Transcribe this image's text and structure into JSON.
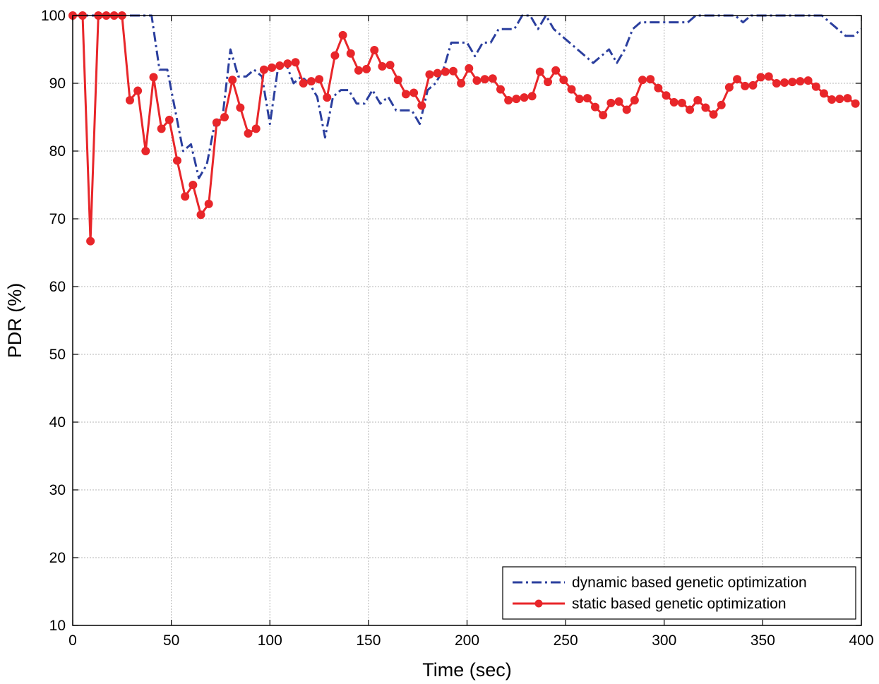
{
  "chart_data": {
    "type": "line",
    "title": "",
    "xlabel": "Time (sec)",
    "ylabel": "PDR (%)",
    "xlim": [
      0,
      400
    ],
    "ylim": [
      10,
      100
    ],
    "xticks": [
      0,
      50,
      100,
      150,
      200,
      250,
      300,
      350,
      400
    ],
    "yticks": [
      10,
      20,
      30,
      40,
      50,
      60,
      70,
      80,
      90,
      100
    ],
    "grid": true,
    "legend_position": "bottom-right",
    "series": [
      {
        "name": "dynamic based genetic optimization",
        "color": "#2b3f9e",
        "line_style": "dash-dot",
        "marker": "none",
        "x": [
          0,
          4,
          8,
          12,
          16,
          20,
          24,
          28,
          32,
          36,
          40,
          44,
          48,
          52,
          56,
          60,
          64,
          68,
          72,
          76,
          80,
          84,
          88,
          92,
          96,
          100,
          104,
          108,
          112,
          116,
          120,
          124,
          128,
          132,
          136,
          140,
          144,
          148,
          152,
          156,
          160,
          164,
          168,
          172,
          176,
          180,
          184,
          188,
          192,
          196,
          200,
          204,
          208,
          212,
          216,
          220,
          224,
          228,
          232,
          236,
          240,
          244,
          248,
          252,
          256,
          260,
          264,
          268,
          272,
          276,
          280,
          284,
          288,
          292,
          296,
          300,
          304,
          308,
          312,
          316,
          320,
          324,
          328,
          332,
          336,
          340,
          344,
          348,
          352,
          356,
          360,
          364,
          368,
          372,
          376,
          380,
          384,
          388,
          392,
          396,
          400
        ],
        "y": [
          100,
          100,
          100,
          100,
          100,
          100,
          100,
          100,
          100,
          100,
          100,
          92,
          92,
          86,
          80,
          81,
          76,
          78,
          84,
          85,
          95,
          91,
          91,
          92,
          91,
          84,
          92,
          93,
          90,
          91,
          90,
          88,
          82,
          88,
          89,
          89,
          87,
          87,
          89,
          87,
          88,
          86,
          86,
          86,
          84,
          89,
          90,
          92,
          96,
          96,
          96,
          94,
          96,
          96,
          98,
          98,
          98,
          100,
          100,
          98,
          100,
          98,
          97,
          96,
          95,
          94,
          93,
          94,
          95,
          93,
          95,
          98,
          99,
          99,
          99,
          99,
          99,
          99,
          99,
          100,
          100,
          100,
          100,
          100,
          100,
          99,
          100,
          100,
          100,
          100,
          100,
          100,
          100,
          100,
          100,
          100,
          99,
          98,
          97,
          97,
          98
        ]
      },
      {
        "name": "static based genetic optimization",
        "color": "#e8262a",
        "line_style": "solid",
        "marker": "circle",
        "x": [
          0,
          5,
          9,
          13,
          17,
          21,
          25,
          29,
          33,
          37,
          41,
          45,
          49,
          53,
          57,
          61,
          65,
          69,
          73,
          77,
          81,
          85,
          89,
          93,
          97,
          101,
          105,
          109,
          113,
          117,
          121,
          125,
          129,
          133,
          137,
          141,
          145,
          149,
          153,
          157,
          161,
          165,
          169,
          173,
          177,
          181,
          185,
          189,
          193,
          197,
          201,
          205,
          209,
          213,
          217,
          221,
          225,
          229,
          233,
          237,
          241,
          245,
          249,
          253,
          257,
          261,
          265,
          269,
          273,
          277,
          281,
          285,
          289,
          293,
          297,
          301,
          305,
          309,
          313,
          317,
          321,
          325,
          329,
          333,
          337,
          341,
          345,
          349,
          353,
          357,
          361,
          365,
          369,
          373,
          377,
          381,
          385,
          389,
          393,
          397
        ],
        "y": [
          100,
          100,
          66.7,
          100,
          100,
          100,
          100,
          87.5,
          88.9,
          80,
          90.9,
          83.3,
          84.6,
          78.6,
          73.3,
          75,
          70.6,
          72.2,
          84.2,
          85,
          90.5,
          86.4,
          82.6,
          83.3,
          92,
          92.3,
          92.6,
          92.9,
          93.1,
          90,
          90.3,
          90.6,
          87.9,
          94.1,
          97.1,
          94.4,
          91.9,
          92.1,
          94.9,
          92.5,
          92.7,
          90.5,
          88.4,
          88.6,
          86.7,
          91.3,
          91.5,
          91.7,
          91.8,
          90,
          92.2,
          90.4,
          90.6,
          90.7,
          89.1,
          87.5,
          87.7,
          87.9,
          88.1,
          91.7,
          90.2,
          91.9,
          90.5,
          89.1,
          87.7,
          87.8,
          86.5,
          85.3,
          87.1,
          87.3,
          86.1,
          87.5,
          90.5,
          90.6,
          89.3,
          88.2,
          87.2,
          87.1,
          86.1,
          87.5,
          86.4,
          85.4,
          86.8,
          89.4,
          90.6,
          89.6,
          89.7,
          90.9,
          91,
          90,
          90.1,
          90.2,
          90.3,
          90.4,
          89.5,
          88.5,
          87.6,
          87.7,
          87.8,
          87
        ]
      }
    ]
  }
}
